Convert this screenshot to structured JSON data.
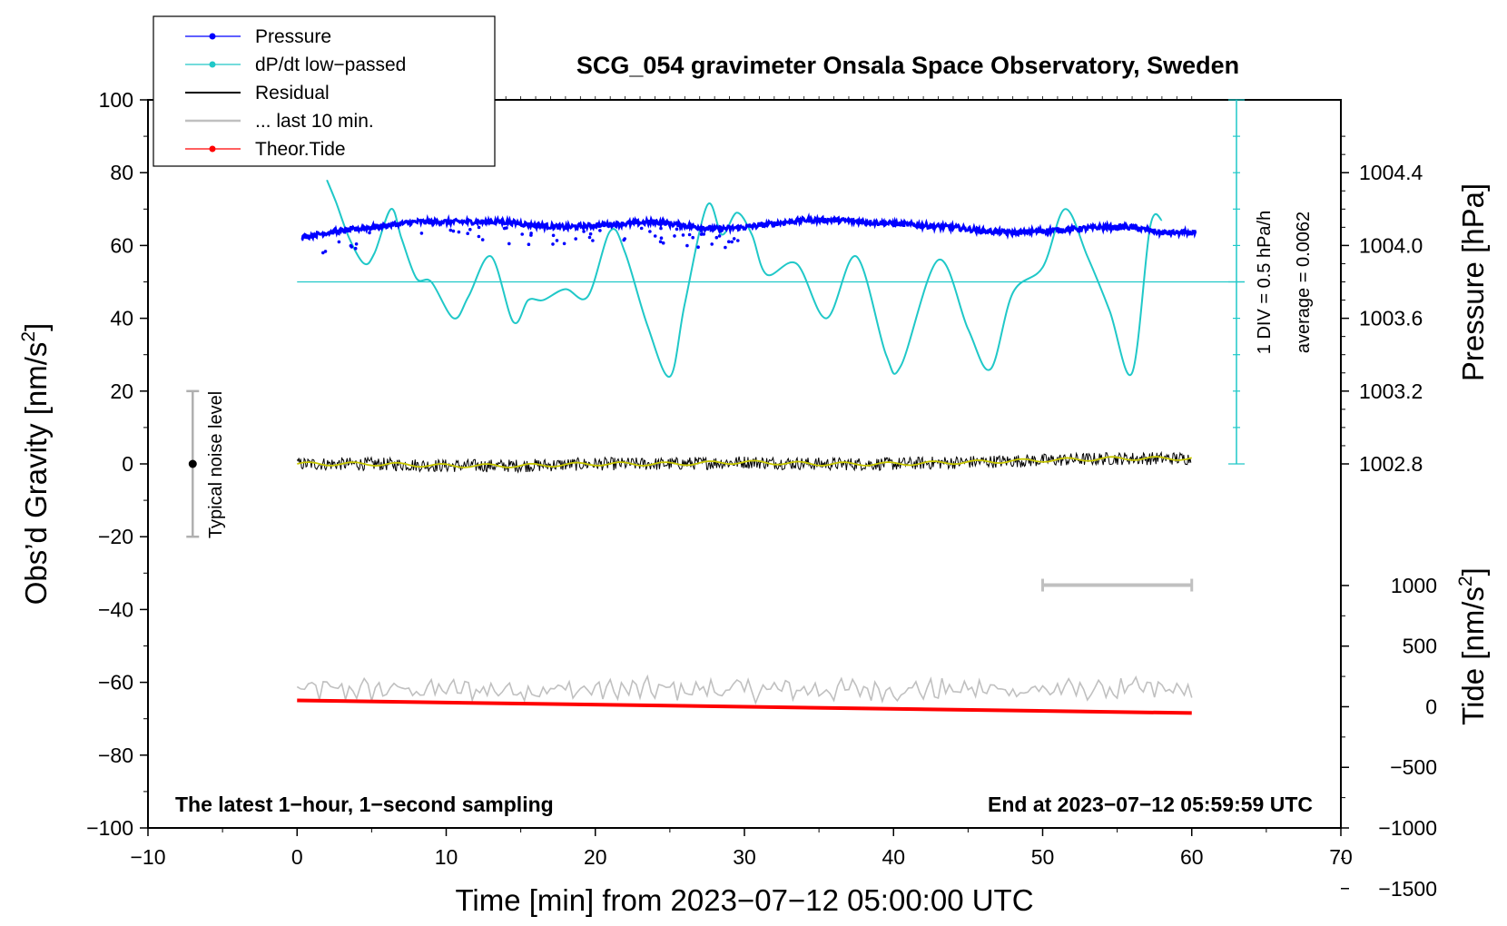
{
  "chart_data": {
    "type": "line",
    "title": "SCG_054 gravimeter Onsala Space Observatory, Sweden",
    "xlabel": "Time [min] from 2023−07−12 05:00:00 UTC",
    "ylabel": "Obs’d Gravity [nm/s²]",
    "ylabel_parts": {
      "base": "Obs’d Gravity [nm/s",
      "sup": "2",
      "end": "]"
    },
    "xlim": [
      -10,
      70
    ],
    "ylim": [
      -100,
      100
    ],
    "x_ticks": [
      "−10",
      "0",
      "10",
      "20",
      "30",
      "40",
      "50",
      "60",
      "70"
    ],
    "y_ticks": [
      "−100",
      "−80",
      "−60",
      "−40",
      "−20",
      "0",
      "20",
      "40",
      "60",
      "80",
      "100"
    ],
    "pressure_axis": {
      "label": "Pressure [hPa]",
      "ticks": [
        "1002.8",
        "1003.2",
        "1003.6",
        "1004.0",
        "1004.4"
      ],
      "tick_values": [
        1002.8,
        1003.2,
        1003.6,
        1004.0,
        1004.4
      ]
    },
    "tide_axis": {
      "label_parts": {
        "base": "Tide [nm/s",
        "sup": "2",
        "end": "]"
      },
      "ticks": [
        "−1500",
        "−1000",
        "−500",
        "0",
        "500",
        "1000"
      ],
      "tick_values": [
        -1500,
        -1000,
        -500,
        0,
        500,
        1000
      ]
    },
    "legend": {
      "position": "top-left",
      "entries": [
        {
          "label": "Pressure",
          "color": "#0000ff",
          "marker": true
        },
        {
          "label": "dP/dt low−passed",
          "color": "#20c8c8",
          "marker": true
        },
        {
          "label": "Residual",
          "color": "#000000",
          "marker": false
        },
        {
          "label": "... last 10 min.",
          "color": "#c0c0c0",
          "marker": false
        },
        {
          "label": "Theor.Tide",
          "color": "#ff0000",
          "marker": true
        }
      ]
    },
    "annotations": {
      "noise_label": "Typical noise level",
      "noise_range": [
        -20,
        20
      ],
      "div_label": "1 DIV = 0.5 hPa/h",
      "average_label": "average = 0.0062",
      "footer_left": "The latest 1−hour, 1−second sampling",
      "footer_right": "End at 2023−07−12 05:59:59 UTC",
      "last10_bar": [
        50,
        60
      ]
    },
    "series": [
      {
        "name": "Pressure",
        "color": "#0000ff",
        "x": [
          0,
          2,
          4,
          6,
          8,
          10,
          12,
          14,
          16,
          18,
          20,
          22,
          24,
          26,
          28,
          30,
          32,
          34,
          36,
          38,
          40,
          42,
          44,
          46,
          48,
          50,
          52,
          54,
          56,
          58,
          60
        ],
        "values": [
          62,
          63.5,
          64.5,
          65.5,
          66.5,
          66.5,
          66.5,
          66.5,
          65.5,
          65,
          65.5,
          66,
          66.5,
          65.5,
          64.5,
          65,
          66,
          67,
          67,
          66.5,
          66,
          65.5,
          65,
          64,
          63.5,
          64,
          64.5,
          65,
          65,
          63.5,
          63.5
        ]
      },
      {
        "name": "dP/dt low−passed",
        "color": "#20c8c8",
        "baseline": 50,
        "x": [
          2,
          2.6,
          3.5,
          4.5,
          5.2,
          6.3,
          7.0,
          8.0,
          9.0,
          10.5,
          11.5,
          13,
          14.5,
          15.5,
          16.5,
          18,
          19.5,
          21,
          22,
          23.5,
          25,
          26,
          27.5,
          28.5,
          29.5,
          30.5,
          31.5,
          33.5,
          35.5,
          37.5,
          39.5,
          40.5,
          43,
          45,
          46.5,
          48,
          50,
          51.5,
          53,
          54.5,
          56,
          57.2,
          58
        ],
        "values": [
          78,
          72,
          62,
          55,
          58,
          70,
          62,
          51,
          50,
          40,
          46,
          57,
          39,
          45,
          45,
          48,
          46,
          64,
          58,
          38,
          24,
          44,
          71,
          63,
          69,
          63,
          52,
          55,
          40,
          57,
          30,
          27,
          56,
          37,
          26,
          47,
          54,
          70,
          57,
          42,
          25,
          65,
          67
        ]
      },
      {
        "name": "Residual",
        "color": "#000000",
        "x": [
          0,
          5,
          10,
          15,
          20,
          25,
          30,
          35,
          40,
          45,
          50,
          55,
          60
        ],
        "values": [
          0,
          0,
          -0.5,
          -0.5,
          0,
          0,
          0.5,
          0,
          0,
          0.5,
          1,
          1.5,
          1.5
        ],
        "noise_amplitude": 1.8
      },
      {
        "name": "... last 10 min.",
        "color": "#c0c0c0",
        "x": [
          0,
          60
        ],
        "values": [
          -62,
          -62
        ],
        "noise_amplitude": 2.5
      },
      {
        "name": "Theor.Tide",
        "color": "#ff0000",
        "x": [
          0,
          60
        ],
        "values": [
          52,
          -52
        ],
        "axis": "tide"
      }
    ]
  }
}
